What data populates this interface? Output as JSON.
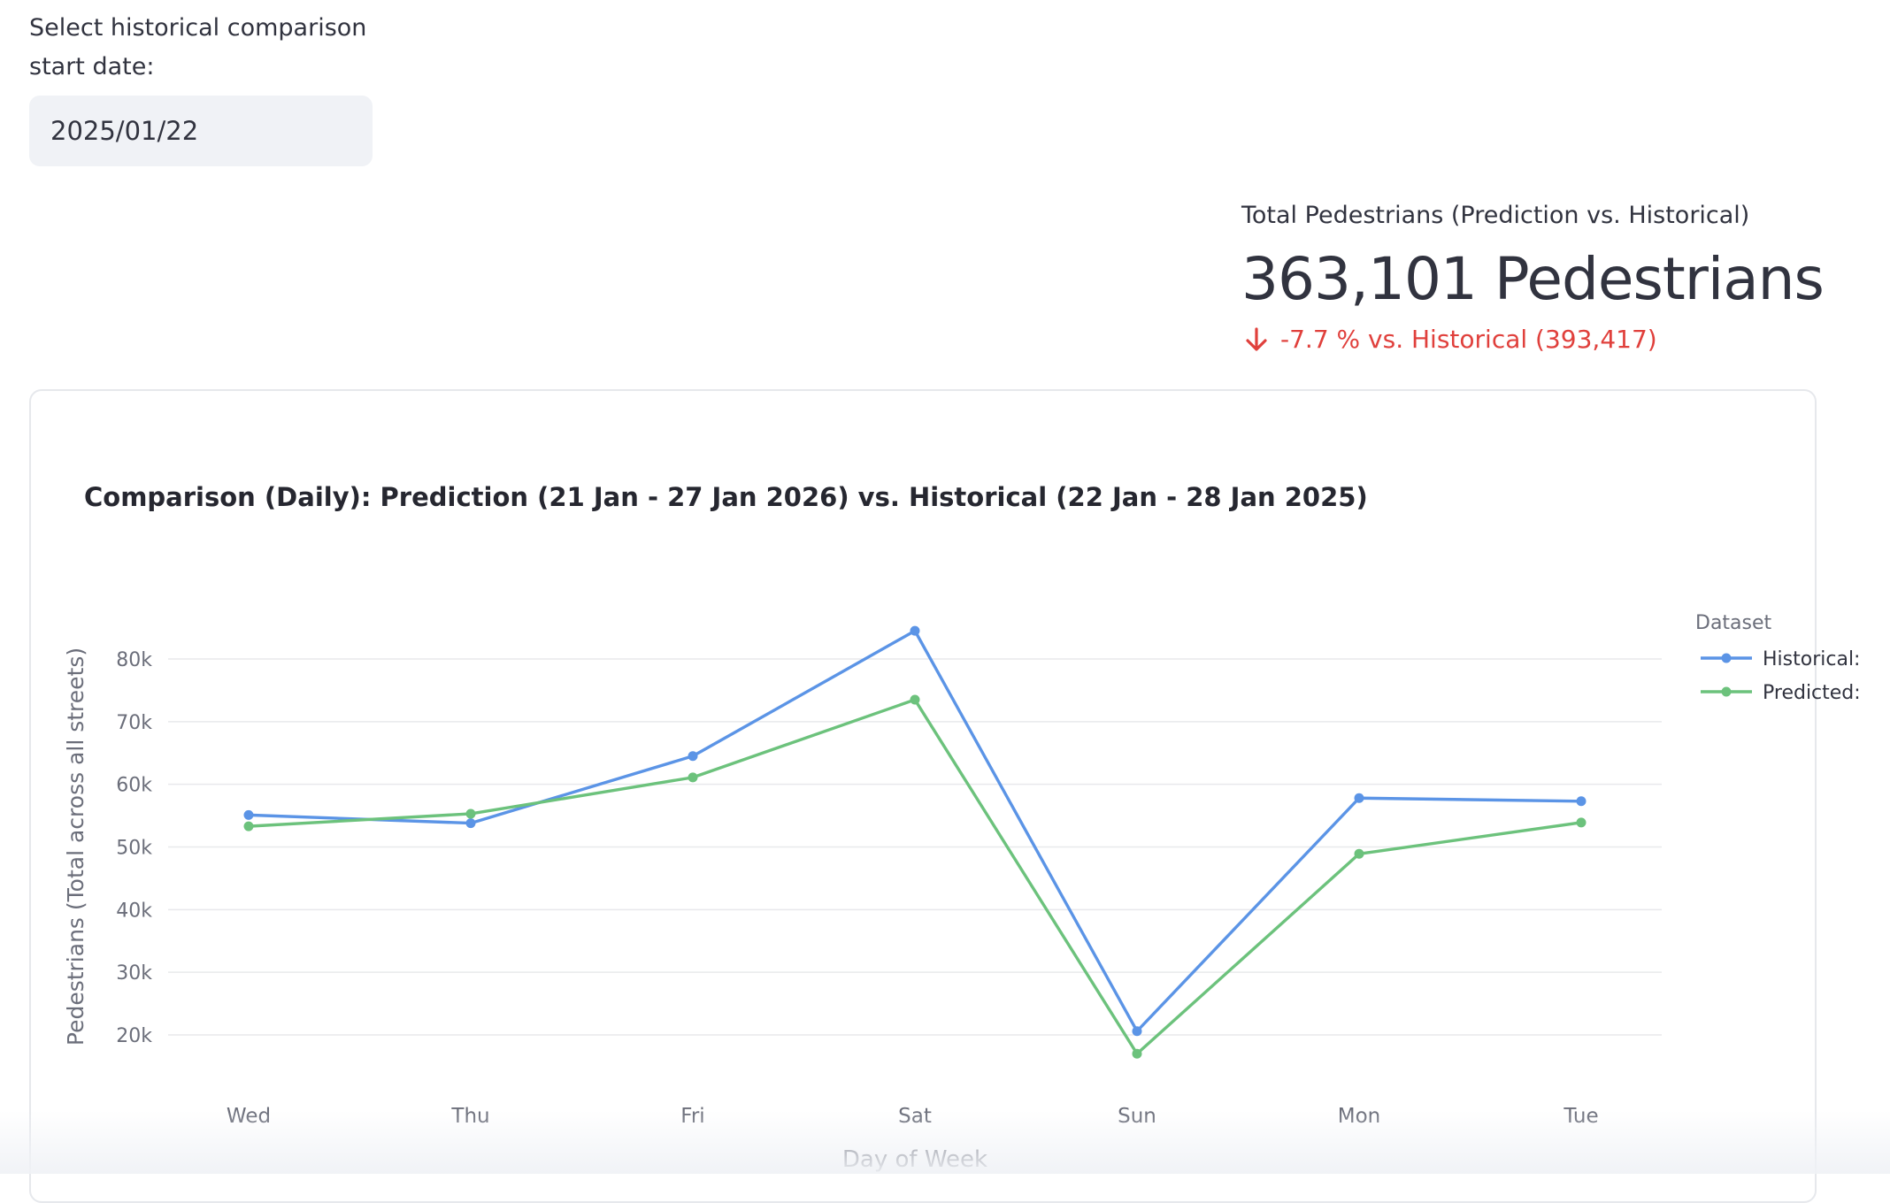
{
  "date_picker": {
    "label": "Select historical comparison start date:",
    "value": "2025/01/22"
  },
  "metric": {
    "label": "Total Pedestrians (Prediction vs. Historical)",
    "value": "363,101 Pedestrians",
    "delta": "-7.7 % vs. Historical (393,417)",
    "delta_color": "#e0403c",
    "delta_icon": "arrow-down-icon"
  },
  "chart_data": {
    "type": "line",
    "title": "Comparison (Daily): Prediction (21 Jan - 27 Jan 2026) vs. Historical (22 Jan - 28 Jan 2025)",
    "xlabel": "Day of Week",
    "ylabel": "Pedestrians (Total across all streets)",
    "categories": [
      "Wed",
      "Thu",
      "Fri",
      "Sat",
      "Sun",
      "Mon",
      "Tue"
    ],
    "y_ticks": [
      20000,
      30000,
      40000,
      50000,
      60000,
      70000,
      80000
    ],
    "y_tick_labels": [
      "20k",
      "30k",
      "40k",
      "50k",
      "60k",
      "70k",
      "80k"
    ],
    "ylim": [
      12000,
      86000
    ],
    "grid": true,
    "legend": {
      "title": "Dataset",
      "placement": "right"
    },
    "series": [
      {
        "name": "Historical:",
        "color": "#5b94e6",
        "values": [
          55100,
          53800,
          64500,
          84500,
          20600,
          57800,
          57300
        ]
      },
      {
        "name": "Predicted:",
        "color": "#6cc27c",
        "values": [
          53300,
          55300,
          61100,
          73500,
          17000,
          48900,
          53900
        ]
      }
    ]
  }
}
